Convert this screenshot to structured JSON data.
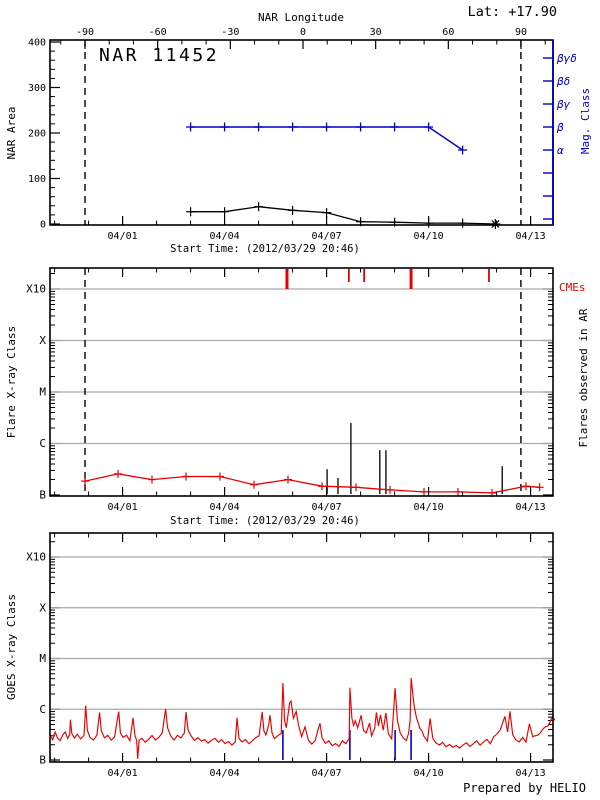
{
  "header": {
    "lat": "Lat: +17.90"
  },
  "footer": {
    "credit": "Prepared by HELIO"
  },
  "colors": {
    "red": "#e80000",
    "blue": "#0000c8",
    "grid": "#aaaaaa",
    "black": "#000000"
  },
  "chart_data": [
    {
      "type": "line",
      "title": "NAR 11452",
      "ylabel": "NAR Area",
      "ylim": [
        0,
        400
      ],
      "yticks": [
        0,
        100,
        200,
        300,
        400
      ],
      "top_axis": {
        "label": "NAR Longitude",
        "ticks": [
          -90,
          -60,
          -30,
          0,
          30,
          60,
          90
        ]
      },
      "right_axis": {
        "label": "Mag. Class",
        "labels": [
          "βγδ",
          "βδ",
          "βγ",
          "β",
          "α"
        ]
      },
      "xlabel": "Start Time: (2012/03/29 20:46)",
      "xticks": [
        {
          "day": 2.135,
          "label": "04/01"
        },
        {
          "day": 5.135,
          "label": "04/04"
        },
        {
          "day": 8.135,
          "label": "04/07"
        },
        {
          "day": 11.135,
          "label": "04/10"
        },
        {
          "day": 14.135,
          "label": "04/13"
        }
      ],
      "limb_crossing_days": [
        1.03,
        13.85
      ],
      "series": [
        {
          "name": "nar-area",
          "color": "#000000",
          "marker": "plus",
          "last_marker": "asterisk",
          "points": [
            [
              4.135,
              27
            ],
            [
              5.135,
              27
            ],
            [
              6.135,
              38
            ],
            [
              7.135,
              30
            ],
            [
              8.135,
              25
            ],
            [
              9.135,
              5
            ],
            [
              10.135,
              4
            ],
            [
              11.135,
              2
            ],
            [
              12.135,
              2
            ],
            [
              13.1,
              0
            ]
          ]
        },
        {
          "name": "mag-class",
          "color": "#0000c8",
          "marker": "plus",
          "points": [
            [
              4.135,
              "β"
            ],
            [
              5.135,
              "β"
            ],
            [
              6.135,
              "β"
            ],
            [
              7.135,
              "β"
            ],
            [
              8.135,
              "β"
            ],
            [
              9.135,
              "β"
            ],
            [
              10.135,
              "β"
            ],
            [
              11.135,
              "β"
            ],
            [
              12.135,
              "α"
            ]
          ]
        }
      ]
    },
    {
      "type": "line",
      "ylabel": "Flare X-ray Class",
      "ytick_labels": [
        "B",
        "C",
        "M",
        "X",
        "X10"
      ],
      "right_label": "Flares observed in AR",
      "cme_label": "CMEs",
      "xlabel": "Start Time: (2012/03/29 20:46)",
      "xticks": [
        {
          "day": 2.135,
          "label": "04/01"
        },
        {
          "day": 5.135,
          "label": "04/04"
        },
        {
          "day": 8.135,
          "label": "04/07"
        },
        {
          "day": 11.135,
          "label": "04/10"
        },
        {
          "day": 14.135,
          "label": "04/13"
        }
      ],
      "limb_crossing_days": [
        1.03,
        13.85
      ],
      "cmes": [
        {
          "day": 6.97,
          "strong": true
        },
        {
          "day": 8.79,
          "strong": false
        },
        {
          "day": 9.24,
          "strong": false
        },
        {
          "day": 10.62,
          "strong": true
        },
        {
          "day": 12.91,
          "strong": false
        }
      ],
      "flares": [
        [
          8.15,
          -6.5
        ],
        [
          8.47,
          -6.67
        ],
        [
          8.85,
          -5.6
        ],
        [
          9.7,
          -6.13
        ],
        [
          9.88,
          -6.13
        ],
        [
          13.3,
          -6.44
        ]
      ],
      "background_curve": {
        "name": "flare-background",
        "color": "#e80000",
        "marker": "plus",
        "points": [
          [
            1.03,
            -6.73
          ],
          [
            2.0,
            -6.59
          ],
          [
            3.0,
            -6.7
          ],
          [
            4.0,
            -6.64
          ],
          [
            5.0,
            -6.64
          ],
          [
            6.0,
            -6.8
          ],
          [
            7.0,
            -6.7
          ],
          [
            8.0,
            -6.83
          ],
          [
            9.0,
            -6.85
          ],
          [
            10.0,
            -6.9
          ],
          [
            11.0,
            -6.94
          ],
          [
            12.0,
            -6.94
          ],
          [
            13.0,
            -6.96
          ],
          [
            14.0,
            -6.83
          ],
          [
            14.4,
            -6.85
          ]
        ]
      }
    },
    {
      "type": "line",
      "ylabel": "GOES X-ray Class",
      "ytick_labels": [
        "B",
        "C",
        "M",
        "X",
        "X10"
      ],
      "xticks": [
        {
          "day": 2.135,
          "label": "04/01"
        },
        {
          "day": 5.135,
          "label": "04/04"
        },
        {
          "day": 8.135,
          "label": "04/07"
        },
        {
          "day": 11.135,
          "label": "04/10"
        },
        {
          "day": 14.135,
          "label": "04/13"
        }
      ],
      "event_marks_days": [
        6.85,
        8.82,
        10.15,
        10.62
      ],
      "series_name": "goes-xray-flux",
      "series_color": "#e80000",
      "series_points": [
        [
          0.0,
          -6.5
        ],
        [
          0.08,
          -6.6
        ],
        [
          0.15,
          -6.45
        ],
        [
          0.22,
          -6.57
        ],
        [
          0.3,
          -6.62
        ],
        [
          0.38,
          -6.5
        ],
        [
          0.45,
          -6.44
        ],
        [
          0.52,
          -6.58
        ],
        [
          0.58,
          -6.5
        ],
        [
          0.6,
          -6.21
        ],
        [
          0.64,
          -6.48
        ],
        [
          0.72,
          -6.58
        ],
        [
          0.8,
          -6.5
        ],
        [
          0.9,
          -6.6
        ],
        [
          1.0,
          -6.52
        ],
        [
          1.05,
          -5.92
        ],
        [
          1.1,
          -6.42
        ],
        [
          1.18,
          -6.56
        ],
        [
          1.28,
          -6.62
        ],
        [
          1.38,
          -6.52
        ],
        [
          1.46,
          -6.07
        ],
        [
          1.51,
          -6.42
        ],
        [
          1.6,
          -6.56
        ],
        [
          1.7,
          -6.5
        ],
        [
          1.8,
          -6.6
        ],
        [
          1.9,
          -6.54
        ],
        [
          2.02,
          -6.05
        ],
        [
          2.07,
          -6.47
        ],
        [
          2.15,
          -6.57
        ],
        [
          2.25,
          -6.52
        ],
        [
          2.35,
          -6.62
        ],
        [
          2.44,
          -6.17
        ],
        [
          2.5,
          -6.52
        ],
        [
          2.55,
          -6.62
        ],
        [
          2.58,
          -7.0
        ],
        [
          2.62,
          -6.62
        ],
        [
          2.7,
          -6.57
        ],
        [
          2.8,
          -6.66
        ],
        [
          2.9,
          -6.6
        ],
        [
          3.0,
          -6.52
        ],
        [
          3.1,
          -6.62
        ],
        [
          3.2,
          -6.57
        ],
        [
          3.3,
          -6.47
        ],
        [
          3.4,
          -6.0
        ],
        [
          3.46,
          -6.37
        ],
        [
          3.55,
          -6.52
        ],
        [
          3.65,
          -6.6
        ],
        [
          3.75,
          -6.52
        ],
        [
          3.85,
          -6.57
        ],
        [
          3.95,
          -6.47
        ],
        [
          4.0,
          -6.05
        ],
        [
          4.06,
          -6.42
        ],
        [
          4.15,
          -6.54
        ],
        [
          4.25,
          -6.62
        ],
        [
          4.35,
          -6.57
        ],
        [
          4.45,
          -6.64
        ],
        [
          4.55,
          -6.6
        ],
        [
          4.65,
          -6.67
        ],
        [
          4.75,
          -6.62
        ],
        [
          4.85,
          -6.57
        ],
        [
          4.95,
          -6.64
        ],
        [
          5.05,
          -6.6
        ],
        [
          5.15,
          -6.67
        ],
        [
          5.25,
          -6.62
        ],
        [
          5.35,
          -6.7
        ],
        [
          5.45,
          -6.64
        ],
        [
          5.5,
          -6.17
        ],
        [
          5.56,
          -6.57
        ],
        [
          5.65,
          -6.64
        ],
        [
          5.75,
          -6.6
        ],
        [
          5.85,
          -6.67
        ],
        [
          5.95,
          -6.62
        ],
        [
          6.05,
          -6.57
        ],
        [
          6.15,
          -6.52
        ],
        [
          6.24,
          -6.05
        ],
        [
          6.29,
          -6.42
        ],
        [
          6.35,
          -6.52
        ],
        [
          6.43,
          -6.32
        ],
        [
          6.47,
          -6.12
        ],
        [
          6.53,
          -6.47
        ],
        [
          6.6,
          -6.57
        ],
        [
          6.7,
          -6.52
        ],
        [
          6.8,
          -6.47
        ],
        [
          6.85,
          -5.48
        ],
        [
          6.9,
          -6.22
        ],
        [
          6.95,
          -6.37
        ],
        [
          7.05,
          -5.87
        ],
        [
          7.09,
          -5.84
        ],
        [
          7.16,
          -6.17
        ],
        [
          7.24,
          -6.04
        ],
        [
          7.31,
          -6.32
        ],
        [
          7.4,
          -6.55
        ],
        [
          7.5,
          -6.35
        ],
        [
          7.6,
          -6.62
        ],
        [
          7.7,
          -6.7
        ],
        [
          7.8,
          -6.62
        ],
        [
          7.94,
          -6.27
        ],
        [
          8.0,
          -6.57
        ],
        [
          8.1,
          -6.67
        ],
        [
          8.2,
          -6.62
        ],
        [
          8.3,
          -6.72
        ],
        [
          8.4,
          -6.67
        ],
        [
          8.5,
          -6.72
        ],
        [
          8.6,
          -6.62
        ],
        [
          8.7,
          -6.67
        ],
        [
          8.8,
          -6.57
        ],
        [
          8.82,
          -5.58
        ],
        [
          8.88,
          -6.17
        ],
        [
          8.93,
          -6.32
        ],
        [
          8.98,
          -6.22
        ],
        [
          9.05,
          -6.37
        ],
        [
          9.15,
          -6.12
        ],
        [
          9.22,
          -6.42
        ],
        [
          9.3,
          -6.47
        ],
        [
          9.4,
          -6.27
        ],
        [
          9.46,
          -6.52
        ],
        [
          9.55,
          -6.37
        ],
        [
          9.6,
          -6.07
        ],
        [
          9.66,
          -6.32
        ],
        [
          9.72,
          -6.12
        ],
        [
          9.8,
          -6.42
        ],
        [
          9.88,
          -6.07
        ],
        [
          9.95,
          -6.47
        ],
        [
          10.05,
          -6.57
        ],
        [
          10.15,
          -5.58
        ],
        [
          10.22,
          -6.22
        ],
        [
          10.3,
          -6.47
        ],
        [
          10.4,
          -6.57
        ],
        [
          10.48,
          -6.62
        ],
        [
          10.55,
          -6.47
        ],
        [
          10.59,
          -6.22
        ],
        [
          10.62,
          -5.38
        ],
        [
          10.66,
          -5.62
        ],
        [
          10.71,
          -5.92
        ],
        [
          10.78,
          -6.17
        ],
        [
          10.88,
          -6.37
        ],
        [
          11.0,
          -6.52
        ],
        [
          11.1,
          -6.62
        ],
        [
          11.18,
          -6.17
        ],
        [
          11.26,
          -6.57
        ],
        [
          11.35,
          -6.66
        ],
        [
          11.45,
          -6.71
        ],
        [
          11.55,
          -6.66
        ],
        [
          11.65,
          -6.73
        ],
        [
          11.75,
          -6.69
        ],
        [
          11.85,
          -6.75
        ],
        [
          11.95,
          -6.7
        ],
        [
          12.05,
          -6.75
        ],
        [
          12.15,
          -6.7
        ],
        [
          12.25,
          -6.65
        ],
        [
          12.35,
          -6.72
        ],
        [
          12.45,
          -6.68
        ],
        [
          12.55,
          -6.62
        ],
        [
          12.65,
          -6.7
        ],
        [
          12.75,
          -6.65
        ],
        [
          12.85,
          -6.6
        ],
        [
          12.95,
          -6.68
        ],
        [
          13.05,
          -6.55
        ],
        [
          13.15,
          -6.5
        ],
        [
          13.25,
          -6.4
        ],
        [
          13.38,
          -6.13
        ],
        [
          13.46,
          -6.45
        ],
        [
          13.53,
          -6.05
        ],
        [
          13.61,
          -6.5
        ],
        [
          13.7,
          -6.6
        ],
        [
          13.8,
          -6.65
        ],
        [
          13.9,
          -6.55
        ],
        [
          14.0,
          -6.65
        ],
        [
          14.1,
          -6.3
        ],
        [
          14.2,
          -6.55
        ],
        [
          14.35,
          -6.5
        ],
        [
          14.5,
          -6.4
        ],
        [
          14.65,
          -6.32
        ],
        [
          14.78,
          -6.15
        ],
        [
          14.85,
          -6.22
        ]
      ]
    }
  ]
}
